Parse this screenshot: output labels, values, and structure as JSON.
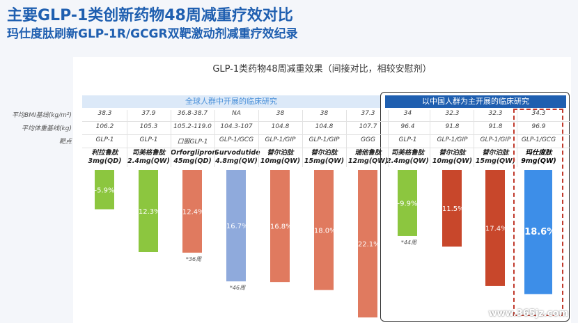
{
  "title_main": "主要GLP-1类创新药物48周减重疗效对比",
  "title_sub": "玛仕度肽刷新GLP-1R/GCGR双靶激动剂减重疗效纪录",
  "watermark": "www.365jz.com",
  "row_labels": {
    "bmi": "平均BMI基线(kg/m²)",
    "weight": "平均体重基线(kg)",
    "target": "靶点"
  },
  "chart_data": {
    "type": "bar",
    "title": "GLP-1类药物48周减重效果（间接对比，相较安慰剂）",
    "region_labels": [
      "全球人群中开展的临床研究",
      "以中国人群为主开展的临床研究"
    ],
    "categories": [
      {
        "name": "利拉鲁肽",
        "dose": "3mg(QD)"
      },
      {
        "name": "司美格鲁肽",
        "dose": "2.4mg(QW)"
      },
      {
        "name": "Orforglipron",
        "dose": "45mg(QD)",
        "prefix": "口服GLP-1"
      },
      {
        "name": "Survodutide",
        "dose": "4.8mg(QW)"
      },
      {
        "name": "替尔泊肽",
        "dose": "10mg(QW)"
      },
      {
        "name": "替尔泊肽",
        "dose": "15mg(QW)"
      },
      {
        "name": "瑞他鲁肽",
        "dose": "12mg(QW)"
      },
      {
        "name": "司美格鲁肽",
        "dose": "2.4mg(QW)"
      },
      {
        "name": "替尔泊肽",
        "dose": "10mg(QW)"
      },
      {
        "name": "替尔泊肽",
        "dose": "15mg(QW)"
      },
      {
        "name": "玛仕度肽",
        "dose": "9mg(QW)"
      }
    ],
    "bmi": [
      "38.3",
      "37.9",
      "36.8-38.7",
      "NA",
      "38",
      "38",
      "37.3",
      "34",
      "32.3",
      "32.3",
      "34.3"
    ],
    "weight": [
      "106.2",
      "105.3",
      "105.2-119.0",
      "104.3-107",
      "104.8",
      "104.8",
      "107.7",
      "96.4",
      "91.8",
      "91.8",
      "96.9"
    ],
    "target": [
      "GLP-1",
      "GLP-1",
      "",
      "GLP-1/GCG",
      "GLP-1/GIP",
      "GLP-1/GIP",
      "GGG",
      "GLP-1",
      "GLP-1/GIP",
      "GLP-1/GIP",
      "GLP-1/GCG"
    ],
    "values": [
      -5.9,
      -12.3,
      -12.4,
      -16.7,
      -16.8,
      -18.0,
      -22.1,
      -9.9,
      -11.5,
      -17.4,
      -18.6
    ],
    "value_labels": [
      "-5.9%",
      "-12.3%",
      "-12.4%",
      "-16.7%",
      "-16.8%",
      "-18.0%",
      "-22.1%",
      "-9.9%",
      "-11.5%",
      "-17.4%",
      "-18.6%"
    ],
    "footnotes": [
      "",
      "",
      "*36周",
      "*46周",
      "",
      "",
      "",
      "*44周",
      "",
      "",
      ""
    ],
    "colors": [
      "#8cc63f",
      "#8cc63f",
      "#e07a5f",
      "#8faadc",
      "#e07a5f",
      "#e07a5f",
      "#e07a5f",
      "#8cc63f",
      "#c8472b",
      "#c8472b",
      "#3d8ee8"
    ],
    "highlight_index": 10
  }
}
